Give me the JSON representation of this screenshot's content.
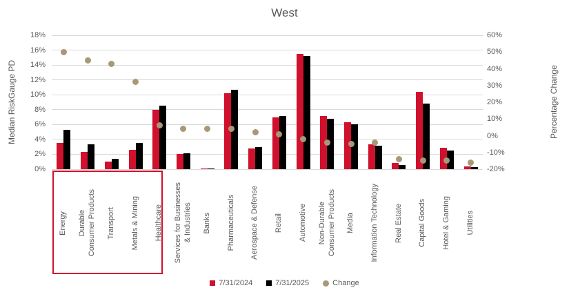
{
  "title": "West",
  "colors": {
    "bar_2024": "#D0112E",
    "bar_2025": "#000000",
    "change_dot": "#A89878",
    "gridline": "#D9D9D9",
    "text": "#595959",
    "highlight_border": "#D0112E"
  },
  "legend": [
    {
      "label": "7/31/2024",
      "marker": "square",
      "color": "#D0112E"
    },
    {
      "label": "7/31/2025",
      "marker": "square",
      "color": "#000000"
    },
    {
      "label": "Change",
      "marker": "circle",
      "color": "#A89878"
    }
  ],
  "highlight_box": {
    "categories_enclosed": [
      "Energy",
      "Durable Consumer Products",
      "Transport",
      "Metals & Mining",
      "Healthcare"
    ]
  },
  "chart_data": {
    "type": "bar",
    "title": "West",
    "grid": true,
    "legend_position": "bottom",
    "left_axis": {
      "title": "Median RiskGauge PD",
      "min": 0,
      "max": 18,
      "step": 2,
      "ticks": [
        "18%",
        "16%",
        "14%",
        "12%",
        "10%",
        "8%",
        "6%",
        "4%",
        "2%",
        "0%"
      ]
    },
    "right_axis": {
      "title": "Percentage Change",
      "min": -20,
      "max": 60,
      "step": 10,
      "ticks": [
        "60%",
        "50%",
        "40%",
        "30%",
        "20%",
        "10%",
        "0%",
        "-10%",
        "-20%"
      ]
    },
    "categories": [
      "Energy",
      "Durable Consumer Products",
      "Transport",
      "Metals & Mining",
      "Healthcare",
      "Services for Businesses & Industries",
      "Banks",
      "Pharmaceuticals",
      "Aerospace & Defense",
      "Retail",
      "Automotive",
      "Non-Durable Consumer Products",
      "Media",
      "Information Technology",
      "Real Estate",
      "Capital Goods",
      "Hotel & Gaming",
      "Utilities"
    ],
    "category_label_lines": [
      [
        "Energy"
      ],
      [
        "Durable",
        "Consumer Products"
      ],
      [
        "Transport"
      ],
      [
        "Metals & Mining"
      ],
      [
        "Healthcare"
      ],
      [
        "Services for Businesses",
        "& Industries"
      ],
      [
        "Banks"
      ],
      [
        "Pharmaceuticals"
      ],
      [
        "Aerospace & Defense"
      ],
      [
        "Retail"
      ],
      [
        "Automotive"
      ],
      [
        "Non-Durable",
        "Consumer Products"
      ],
      [
        "Media"
      ],
      [
        "Information Technology"
      ],
      [
        "Real Estate"
      ],
      [
        "Capital Goods"
      ],
      [
        "Hotel & Gaming"
      ],
      [
        "Utilities"
      ]
    ],
    "series": [
      {
        "name": "7/31/2024",
        "type": "bar",
        "axis": "left",
        "color": "#D0112E",
        "values": [
          3.5,
          2.3,
          1.0,
          2.6,
          8.0,
          2.0,
          0.1,
          10.2,
          2.8,
          7.0,
          15.5,
          7.1,
          6.3,
          3.3,
          0.8,
          10.4,
          2.9,
          0.35
        ]
      },
      {
        "name": "7/31/2025",
        "type": "bar",
        "axis": "left",
        "color": "#000000",
        "values": [
          5.3,
          3.3,
          1.4,
          3.5,
          8.5,
          2.1,
          0.1,
          10.7,
          3.0,
          7.1,
          15.2,
          6.8,
          6.0,
          3.2,
          0.6,
          8.8,
          2.5,
          0.25
        ]
      },
      {
        "name": "Change",
        "type": "scatter",
        "axis": "right",
        "color": "#A89878",
        "values": [
          50,
          45,
          43,
          32,
          6,
          4,
          4,
          4,
          2,
          1,
          -2,
          -4,
          -5,
          -4,
          -14,
          -15,
          -15,
          -16
        ]
      }
    ]
  }
}
